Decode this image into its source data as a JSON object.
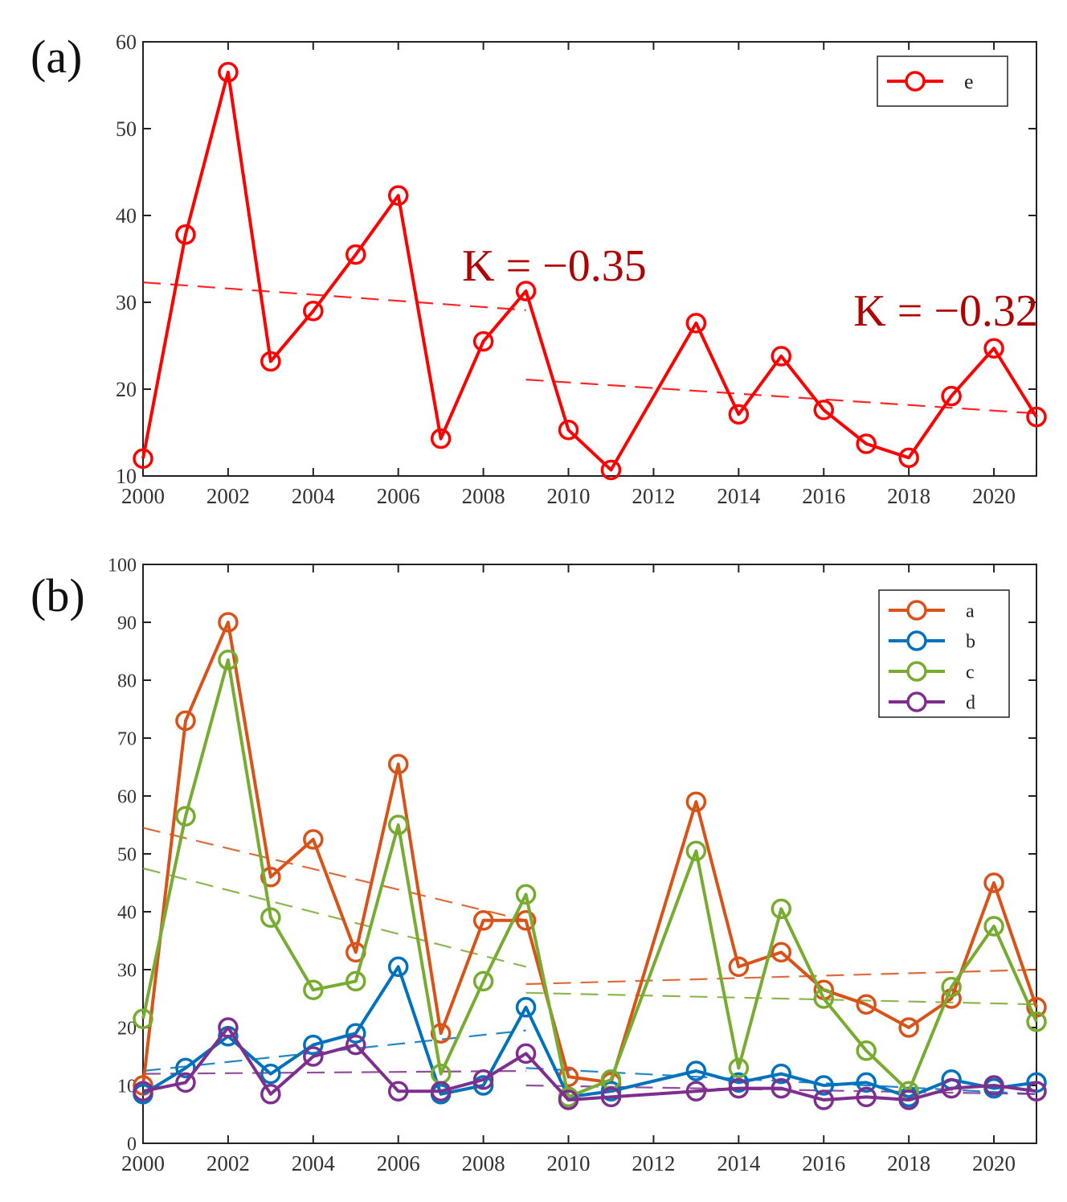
{
  "chart_data": [
    {
      "panel_label": "(a)",
      "type": "line",
      "x": [
        2000,
        2001,
        2002,
        2003,
        2004,
        2005,
        2006,
        2007,
        2008,
        2009,
        2010,
        2011,
        2013,
        2014,
        2015,
        2016,
        2017,
        2018,
        2019,
        2020,
        2021
      ],
      "xlim": [
        2000,
        2021
      ],
      "xticks": [
        2000,
        2002,
        2004,
        2006,
        2008,
        2010,
        2012,
        2014,
        2016,
        2018,
        2020
      ],
      "ylim": [
        10,
        60
      ],
      "yticks": [
        10,
        20,
        30,
        40,
        50,
        60
      ],
      "series": [
        {
          "name": "e",
          "color": "#ff0000",
          "values": [
            12,
            37.8,
            56.5,
            23.2,
            29,
            35.5,
            42.3,
            14.3,
            25.5,
            31.3,
            15.3,
            10.7,
            27.6,
            17.1,
            23.8,
            17.6,
            13.7,
            12.1,
            19.2,
            24.7,
            16.8
          ]
        }
      ],
      "trends": [
        {
          "series": "e",
          "from": [
            2000,
            32.3
          ],
          "to": [
            2009,
            29.1
          ]
        },
        {
          "series": "e",
          "from": [
            2009,
            21.1
          ],
          "to": [
            2021,
            17.2
          ]
        }
      ],
      "annotations": [
        {
          "text": "K = −0.35",
          "x": 2007.5,
          "y": 32.5,
          "color": "#b00000"
        },
        {
          "text": "K = −0.32",
          "x": 2016.7,
          "y": 27.3,
          "color": "#b00000"
        }
      ],
      "legend_position": "top-right",
      "title": "",
      "xlabel": "",
      "ylabel": ""
    },
    {
      "panel_label": "(b)",
      "type": "line",
      "x": [
        2000,
        2001,
        2002,
        2003,
        2004,
        2005,
        2006,
        2007,
        2008,
        2009,
        2010,
        2011,
        2013,
        2014,
        2015,
        2016,
        2017,
        2018,
        2019,
        2020,
        2021
      ],
      "xlim": [
        2000,
        2021
      ],
      "xticks": [
        2000,
        2002,
        2004,
        2006,
        2008,
        2010,
        2012,
        2014,
        2016,
        2018,
        2020
      ],
      "ylim": [
        0,
        100
      ],
      "yticks": [
        0,
        10,
        20,
        30,
        40,
        50,
        60,
        70,
        80,
        90,
        100
      ],
      "series": [
        {
          "name": "a",
          "color": "#d95319",
          "values": [
            10,
            73,
            90,
            46,
            52.5,
            33,
            65.5,
            19,
            38.5,
            38.5,
            11.5,
            10.5,
            59,
            30.5,
            33,
            26.5,
            24,
            20,
            25,
            45,
            23.5
          ]
        },
        {
          "name": "b",
          "color": "#0072bd",
          "values": [
            8.5,
            13,
            18.5,
            12,
            17,
            19,
            30.5,
            8.5,
            10,
            23.5,
            8,
            9,
            12.5,
            10.5,
            12,
            10,
            10.5,
            8,
            11,
            9.5,
            10.5
          ]
        },
        {
          "name": "c",
          "color": "#77ac30",
          "values": [
            21.5,
            56.5,
            83.5,
            39,
            26.5,
            28,
            55,
            12,
            28,
            43,
            8,
            11,
            50.5,
            13,
            40.5,
            25,
            16,
            9,
            27,
            37.5,
            21
          ]
        },
        {
          "name": "d",
          "color": "#7e2f8e",
          "values": [
            9,
            10.5,
            20,
            8.5,
            15,
            17,
            9,
            9,
            11,
            15.5,
            7.5,
            8,
            9,
            9.5,
            9.5,
            7.5,
            8,
            7.5,
            9.5,
            10,
            9
          ]
        }
      ],
      "trends": [
        {
          "series": "a",
          "from": [
            2000,
            54.5
          ],
          "to": [
            2009,
            38.5
          ]
        },
        {
          "series": "a",
          "from": [
            2009,
            27.5
          ],
          "to": [
            2021,
            30
          ]
        },
        {
          "series": "c",
          "from": [
            2000,
            47.5
          ],
          "to": [
            2009,
            30.5
          ]
        },
        {
          "series": "c",
          "from": [
            2009,
            26
          ],
          "to": [
            2021,
            24
          ]
        },
        {
          "series": "b",
          "from": [
            2000,
            12.5
          ],
          "to": [
            2009,
            19.5
          ]
        },
        {
          "series": "b",
          "from": [
            2009,
            13
          ],
          "to": [
            2021,
            8.5
          ]
        },
        {
          "series": "d",
          "from": [
            2000,
            12
          ],
          "to": [
            2009,
            12.5
          ]
        },
        {
          "series": "d",
          "from": [
            2009,
            10
          ],
          "to": [
            2021,
            8.5
          ]
        }
      ],
      "annotations": [],
      "legend_position": "top-right",
      "title": "",
      "xlabel": "",
      "ylabel": ""
    }
  ]
}
